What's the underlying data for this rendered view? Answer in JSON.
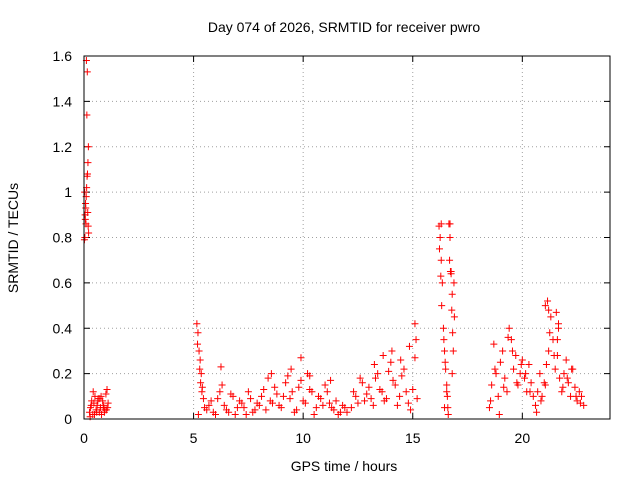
{
  "chart_data": {
    "type": "scatter",
    "title": "Day 074 of 2026, SRMTID for receiver pwro",
    "xlabel": "GPS time / hours",
    "ylabel": "SRMTID / TECUs",
    "xlim": [
      0,
      24
    ],
    "ylim": [
      0,
      1.6
    ],
    "x_ticks": [
      0,
      5,
      10,
      15,
      20
    ],
    "x_tick_labels": [
      "0",
      "5",
      "10",
      "15",
      "20"
    ],
    "y_ticks": [
      0,
      0.2,
      0.4,
      0.6,
      0.8,
      1,
      1.2,
      1.4,
      1.6
    ],
    "y_tick_labels": [
      "0",
      "0.2",
      "0.4",
      "0.6",
      "0.8",
      "1",
      "1.2",
      "1.4",
      "1.6"
    ],
    "grid": true,
    "marker": "+",
    "color": "#ff0000",
    "series": [
      {
        "name": "SRMTID",
        "x": [
          0.02,
          0.04,
          0.06,
          0.08,
          0.1,
          0.12,
          0.14,
          0.16,
          0.18,
          0.2,
          0.05,
          0.09,
          0.13,
          0.15,
          0.11,
          0.07,
          0.17,
          0.03,
          0.19,
          0.21,
          0.25,
          0.3,
          0.35,
          0.4,
          0.45,
          0.5,
          0.55,
          0.6,
          0.65,
          0.7,
          0.75,
          0.8,
          0.85,
          0.9,
          0.95,
          1.0,
          1.05,
          1.1,
          0.28,
          0.42,
          0.58,
          0.72,
          0.88,
          1.02,
          0.33,
          0.48,
          0.63,
          0.78,
          0.93,
          1.08,
          5.15,
          5.2,
          5.25,
          5.3,
          5.35,
          5.4,
          5.45,
          5.5,
          5.18,
          5.28,
          5.38,
          5.22,
          5.32,
          5.6,
          5.8,
          6.0,
          6.2,
          6.4,
          6.6,
          6.8,
          7.0,
          7.2,
          7.4,
          7.6,
          7.8,
          8.0,
          8.2,
          8.4,
          8.6,
          8.8,
          9.0,
          9.2,
          9.4,
          9.6,
          9.8,
          10.0,
          10.2,
          10.4,
          10.6,
          10.8,
          11.0,
          11.2,
          11.4,
          11.6,
          11.8,
          12.0,
          5.7,
          5.9,
          6.1,
          6.3,
          6.5,
          6.7,
          6.9,
          7.1,
          7.3,
          7.5,
          7.7,
          7.9,
          8.1,
          8.3,
          8.5,
          8.7,
          8.9,
          9.1,
          9.3,
          9.5,
          9.7,
          9.9,
          10.1,
          10.3,
          10.5,
          10.7,
          10.9,
          11.1,
          11.3,
          11.5,
          11.7,
          11.9,
          6.25,
          8.55,
          9.45,
          9.9,
          10.3,
          11.25,
          12.2,
          12.4,
          12.6,
          12.8,
          13.0,
          13.2,
          13.4,
          13.6,
          13.8,
          14.0,
          14.2,
          14.4,
          14.6,
          14.8,
          15.0,
          15.2,
          12.3,
          12.5,
          12.7,
          12.9,
          13.1,
          13.3,
          13.5,
          13.7,
          13.9,
          14.1,
          14.3,
          14.5,
          14.7,
          14.9,
          15.1,
          13.25,
          13.65,
          14.05,
          14.45,
          14.85,
          15.1,
          15.15,
          16.2,
          16.25,
          16.3,
          16.35,
          16.4,
          16.45,
          16.5,
          16.55,
          16.6,
          16.65,
          16.7,
          16.75,
          16.8,
          16.85,
          16.9,
          16.22,
          16.28,
          16.32,
          16.42,
          16.48,
          16.58,
          16.62,
          16.68,
          16.72,
          16.78,
          16.82,
          16.88,
          16.3,
          16.7,
          16.75,
          16.8,
          16.55,
          16.45,
          18.5,
          18.6,
          18.7,
          18.8,
          18.9,
          19.0,
          19.1,
          19.2,
          19.3,
          19.4,
          19.5,
          19.6,
          19.7,
          19.8,
          19.9,
          20.0,
          20.1,
          20.2,
          20.3,
          20.4,
          20.5,
          18.55,
          18.75,
          18.95,
          19.15,
          19.35,
          19.55,
          19.75,
          19.95,
          20.15,
          20.35,
          20.6,
          20.7,
          20.8,
          20.9,
          21.0,
          21.1,
          21.2,
          21.3,
          21.4,
          21.5,
          21.6,
          21.7,
          21.8,
          21.9,
          22.0,
          22.1,
          22.2,
          22.3,
          22.4,
          22.5,
          22.6,
          22.7,
          22.8,
          20.65,
          20.85,
          21.05,
          21.25,
          21.45,
          21.65,
          21.85,
          22.05,
          22.25,
          22.45,
          22.65,
          21.05,
          21.15,
          21.2,
          21.55,
          21.6,
          21.65
        ],
        "y": [
          0.79,
          0.8,
          0.88,
          0.93,
          0.98,
          1.02,
          1.07,
          1.08,
          1.13,
          1.2,
          0.9,
          0.86,
          1.34,
          1.53,
          1.58,
          0.95,
          0.91,
          1.0,
          0.85,
          0.82,
          0.03,
          0.05,
          0.08,
          0.02,
          0.07,
          0.1,
          0.04,
          0.06,
          0.09,
          0.03,
          0.05,
          0.02,
          0.08,
          0.06,
          0.04,
          0.11,
          0.13,
          0.07,
          0.01,
          0.12,
          0.03,
          0.09,
          0.05,
          0.04,
          0.06,
          0.02,
          0.08,
          0.1,
          0.03,
          0.05,
          0.42,
          0.38,
          0.3,
          0.26,
          0.2,
          0.14,
          0.09,
          0.05,
          0.33,
          0.22,
          0.12,
          0.02,
          0.16,
          0.04,
          0.08,
          0.02,
          0.12,
          0.06,
          0.03,
          0.1,
          0.05,
          0.07,
          0.02,
          0.09,
          0.04,
          0.06,
          0.13,
          0.18,
          0.07,
          0.11,
          0.05,
          0.16,
          0.09,
          0.03,
          0.14,
          0.08,
          0.2,
          0.12,
          0.05,
          0.09,
          0.15,
          0.07,
          0.04,
          0.02,
          0.06,
          0.03,
          0.06,
          0.03,
          0.09,
          0.15,
          0.04,
          0.11,
          0.02,
          0.08,
          0.05,
          0.12,
          0.03,
          0.07,
          0.1,
          0.04,
          0.08,
          0.14,
          0.06,
          0.1,
          0.19,
          0.12,
          0.04,
          0.17,
          0.07,
          0.13,
          0.02,
          0.1,
          0.06,
          0.12,
          0.05,
          0.08,
          0.03,
          0.05,
          0.23,
          0.2,
          0.22,
          0.27,
          0.19,
          0.17,
          0.05,
          0.1,
          0.18,
          0.08,
          0.14,
          0.06,
          0.2,
          0.12,
          0.09,
          0.25,
          0.15,
          0.1,
          0.22,
          0.07,
          0.13,
          0.09,
          0.12,
          0.07,
          0.16,
          0.11,
          0.09,
          0.18,
          0.13,
          0.08,
          0.21,
          0.17,
          0.06,
          0.19,
          0.12,
          0.04,
          0.27,
          0.24,
          0.28,
          0.3,
          0.26,
          0.32,
          0.42,
          0.35,
          0.85,
          0.8,
          0.7,
          0.6,
          0.4,
          0.3,
          0.22,
          0.15,
          0.05,
          0.86,
          0.8,
          0.65,
          0.55,
          0.3,
          0.45,
          0.75,
          0.63,
          0.5,
          0.35,
          0.25,
          0.1,
          0.02,
          0.7,
          0.65,
          0.48,
          0.38,
          0.6,
          0.86,
          0.86,
          0.64,
          0.2,
          0.12,
          0.05,
          0.05,
          0.15,
          0.33,
          0.2,
          0.1,
          0.25,
          0.3,
          0.18,
          0.12,
          0.4,
          0.35,
          0.22,
          0.28,
          0.15,
          0.2,
          0.26,
          0.18,
          0.12,
          0.24,
          0.16,
          0.1,
          0.08,
          0.22,
          0.02,
          0.14,
          0.36,
          0.3,
          0.16,
          0.24,
          0.2,
          0.12,
          0.06,
          0.12,
          0.2,
          0.1,
          0.16,
          0.24,
          0.3,
          0.45,
          0.35,
          0.22,
          0.28,
          0.18,
          0.12,
          0.2,
          0.26,
          0.16,
          0.1,
          0.22,
          0.14,
          0.08,
          0.12,
          0.1,
          0.06,
          0.03,
          0.08,
          0.15,
          0.38,
          0.28,
          0.4,
          0.14,
          0.18,
          0.22,
          0.1,
          0.07,
          0.5,
          0.52,
          0.48,
          0.47,
          0.35,
          0.42
        ]
      }
    ]
  }
}
